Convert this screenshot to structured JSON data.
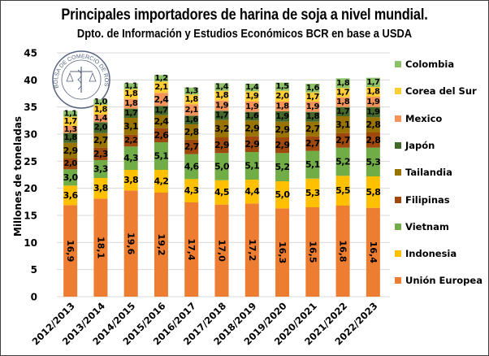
{
  "chart_data": {
    "type": "bar",
    "stacked": true,
    "title": "Principales importadores de harina de soja a nivel mundial.",
    "subtitle": "Dpto. de Información y Estudios Económicos BCR en base a USDA",
    "xlabel": "",
    "ylabel": "Millones de toneladas",
    "ylim": [
      0,
      45
    ],
    "yticks": [
      0,
      5,
      10,
      15,
      20,
      25,
      30,
      35,
      40,
      45
    ],
    "grid": true,
    "legend_position": "right",
    "watermark": "BOLSA DE COMERCIO DE ROSARIO",
    "categories": [
      "2012/2013",
      "2013/2014",
      "2014/2015",
      "2015/2016",
      "2016/2017",
      "2017/2018",
      "2018/2019",
      "2019/2020",
      "2020/2021",
      "2021/2022",
      "2022/2023"
    ],
    "series": [
      {
        "name": "Unión Europea",
        "color": "#ED7D31",
        "values": [
          16.9,
          18.1,
          19.6,
          19.2,
          17.4,
          17.0,
          17.2,
          16.3,
          16.5,
          16.8,
          16.4
        ]
      },
      {
        "name": "Indonesia",
        "color": "#FFC000",
        "values": [
          3.6,
          3.8,
          3.8,
          4.2,
          4.3,
          4.5,
          4.4,
          5.0,
          5.3,
          5.5,
          5.8
        ]
      },
      {
        "name": "Vietnam",
        "color": "#70AD47",
        "values": [
          3.0,
          3.3,
          4.3,
          5.1,
          4.6,
          5.0,
          5.1,
          5.2,
          5.1,
          5.2,
          5.3
        ]
      },
      {
        "name": "Filipinas",
        "color": "#9E480E",
        "values": [
          2.0,
          2.3,
          2.2,
          2.6,
          2.7,
          2.9,
          2.9,
          2.9,
          2.7,
          2.7,
          2.8
        ]
      },
      {
        "name": "Tailandia",
        "color": "#997300",
        "values": [
          2.9,
          2.7,
          3.1,
          2.4,
          2.8,
          3.2,
          2.9,
          2.9,
          2.7,
          3.1,
          2.8
        ]
      },
      {
        "name": "Japón",
        "color": "#43682B",
        "values": [
          1.8,
          2.0,
          1.7,
          1.7,
          1.6,
          1.7,
          1.6,
          1.9,
          1.8,
          1.7,
          1.9
        ]
      },
      {
        "name": "Mexico",
        "color": "#F4945B",
        "values": [
          1.3,
          1.4,
          1.8,
          2.4,
          2.1,
          1.9,
          1.9,
          1.8,
          1.9,
          1.8,
          1.9
        ]
      },
      {
        "name": "Corea del Sur",
        "color": "#FFCD33",
        "values": [
          1.7,
          1.8,
          1.8,
          2.1,
          1.8,
          1.8,
          1.9,
          2.0,
          1.7,
          1.7,
          1.8
        ]
      },
      {
        "name": "Colombia",
        "color": "#8CC168",
        "values": [
          1.1,
          1.0,
          1.1,
          1.2,
          1.3,
          1.4,
          1.4,
          1.5,
          1.6,
          1.8,
          1.7
        ]
      }
    ],
    "legend_order": [
      "Colombia",
      "Corea del Sur",
      "Mexico",
      "Japón",
      "Tailandia",
      "Filipinas",
      "Vietnam",
      "Indonesia",
      "Unión Europea"
    ]
  }
}
